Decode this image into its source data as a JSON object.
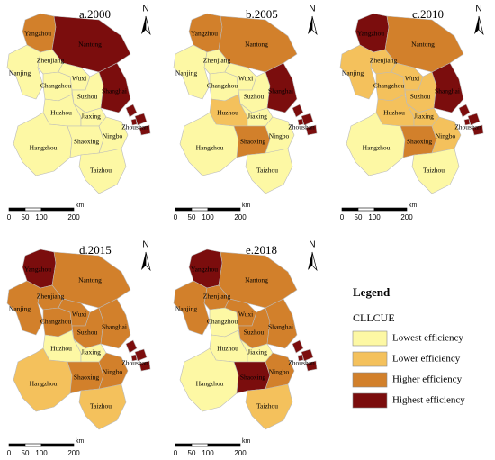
{
  "north": "N",
  "scale_bar": {
    "ticks": [
      0,
      50,
      100,
      200
    ],
    "unit": "km"
  },
  "legend": {
    "title": "Legend",
    "subtitle": "CLLCUE",
    "classes": [
      {
        "label": "Lowest efficiency",
        "color": "#fdf8a4"
      },
      {
        "label": "Lower efficiency",
        "color": "#f4c15c"
      },
      {
        "label": "Higher efficiency",
        "color": "#d2802b"
      },
      {
        "label": "Highest efficiency",
        "color": "#7b0d0d"
      }
    ]
  },
  "cities": [
    "Yangzhou",
    "Nantong",
    "Nanjing",
    "Zhenjiang",
    "Changzhou",
    "Wuxi",
    "Suzhou",
    "Shanghai",
    "Huzhou",
    "Jiaxing",
    "Hangzhou",
    "Shaoxing",
    "Ningbo",
    "Zhoushan",
    "Taizhou"
  ],
  "maps": [
    {
      "title": "a.2000",
      "classes": [
        "Higher efficiency",
        "Highest efficiency",
        "Lowest efficiency",
        "Lowest efficiency",
        "Lowest efficiency",
        "Lowest efficiency",
        "Lowest efficiency",
        "Highest efficiency",
        "Lowest efficiency",
        "Lowest efficiency",
        "Lowest efficiency",
        "Lowest efficiency",
        "Lowest efficiency",
        "Highest efficiency",
        "Lowest efficiency"
      ]
    },
    {
      "title": "b.2005",
      "classes": [
        "Higher efficiency",
        "Higher efficiency",
        "Lowest efficiency",
        "Lowest efficiency",
        "Lowest efficiency",
        "Lowest efficiency",
        "Lowest efficiency",
        "Highest efficiency",
        "Lower efficiency",
        "Lowest efficiency",
        "Lowest efficiency",
        "Higher efficiency",
        "Lowest efficiency",
        "Highest efficiency",
        "Lowest efficiency"
      ]
    },
    {
      "title": "c.2010",
      "classes": [
        "Highest efficiency",
        "Higher efficiency",
        "Lower efficiency",
        "Lower efficiency",
        "Lower efficiency",
        "Lower efficiency",
        "Lower efficiency",
        "Highest efficiency",
        "Lower efficiency",
        "Lower efficiency",
        "Lowest efficiency",
        "Higher efficiency",
        "Lower efficiency",
        "Highest efficiency",
        "Lowest efficiency"
      ]
    },
    {
      "title": "d.2015",
      "classes": [
        "Highest efficiency",
        "Higher efficiency",
        "Higher efficiency",
        "Higher efficiency",
        "Higher efficiency",
        "Higher efficiency",
        "Higher efficiency",
        "Higher efficiency",
        "Lowest efficiency",
        "Lowest efficiency",
        "Lower efficiency",
        "Higher efficiency",
        "Higher efficiency",
        "Highest efficiency",
        "Lower efficiency"
      ]
    },
    {
      "title": "e.2018",
      "classes": [
        "Highest efficiency",
        "Higher efficiency",
        "Higher efficiency",
        "Higher efficiency",
        "Lowest efficiency",
        "Higher efficiency",
        "Higher efficiency",
        "Higher efficiency",
        "Lowest efficiency",
        "Lowest efficiency",
        "Lowest efficiency",
        "Highest efficiency",
        "Higher efficiency",
        "Highest efficiency",
        "Lower efficiency"
      ]
    }
  ]
}
